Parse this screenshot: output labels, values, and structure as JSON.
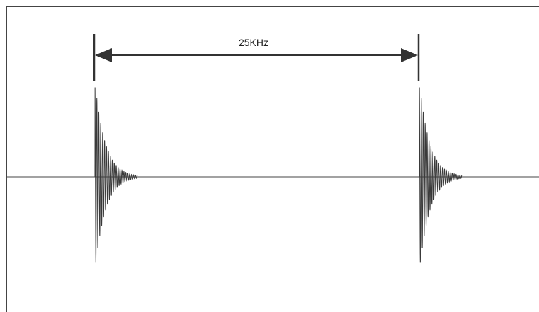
{
  "diagram": {
    "interval_label": "25KHz",
    "colors": {
      "background": "#ffffff",
      "stroke": "#333333",
      "waveform": "#3a3a3a"
    }
  }
}
